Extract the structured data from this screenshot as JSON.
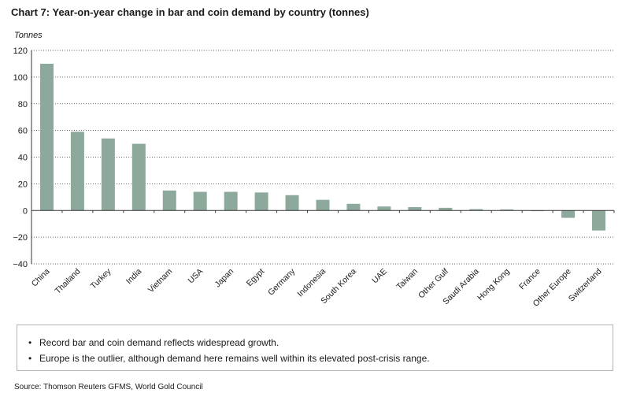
{
  "title": "Chart 7: Year-on-year change in bar and coin demand by country (tonnes)",
  "colors": {
    "bar": "#8da99b",
    "axis": "#333333",
    "grid": "#333333"
  },
  "chart_data": {
    "type": "bar",
    "title": "Chart 7: Year-on-year change in bar and coin demand by country (tonnes)",
    "ylabel": "Tonnes",
    "xlabel": "",
    "ylim": [
      -40,
      120
    ],
    "yticks": [
      120,
      100,
      80,
      60,
      40,
      20,
      0,
      -20,
      -40
    ],
    "grid": true,
    "categories": [
      "China",
      "Thailand",
      "Turkey",
      "India",
      "Vietnam",
      "USA",
      "Japan",
      "Egypt",
      "Germany",
      "Indonesia",
      "South Korea",
      "UAE",
      "Taiwan",
      "Other Gulf",
      "Saudi Arabia",
      "Hong Kong",
      "France",
      "Other Europe",
      "Switzerland"
    ],
    "values": [
      110,
      59,
      54,
      50,
      15,
      14,
      14,
      13.5,
      11.5,
      8,
      5,
      3,
      2.5,
      2,
      1,
      0.8,
      -0.5,
      -5.5,
      -15
    ]
  },
  "notes": [
    "Record bar and coin demand reflects widespread growth.",
    "Europe is the outlier, although demand here remains well within its elevated post-crisis range."
  ],
  "bullet_glyph": "•",
  "source": "Source: Thomson Reuters GFMS, World Gold Council"
}
